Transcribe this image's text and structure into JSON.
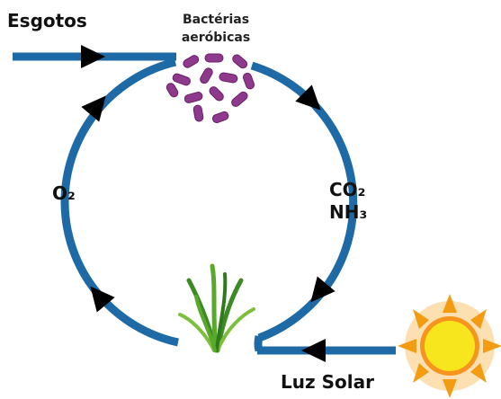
{
  "labels": {
    "input": "Esgotos",
    "bacteria_line1": "Bactérias",
    "bacteria_line2": "aeróbicas",
    "oxygen": "O₂",
    "co2": "CO₂",
    "nh3": "NH₃",
    "sunlight": "Luz Solar"
  }
}
